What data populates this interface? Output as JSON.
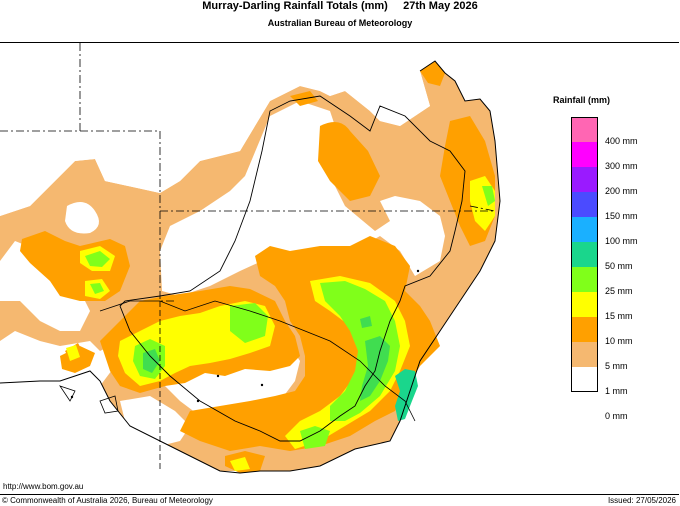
{
  "header": {
    "title": "Murray-Darling Rainfall Totals (mm)     27th May 2026",
    "subtitle": "Australian Bureau of Meteorology"
  },
  "legend": {
    "title": "Rainfall (mm)",
    "items": [
      {
        "label": "400 mm",
        "color": "#ff66b3"
      },
      {
        "label": "300 mm",
        "color": "#ff00ff"
      },
      {
        "label": "200 mm",
        "color": "#9a1aff"
      },
      {
        "label": "150 mm",
        "color": "#4b4bff"
      },
      {
        "label": "100 mm",
        "color": "#1ab0ff"
      },
      {
        "label": "50 mm",
        "color": "#1ad68c"
      },
      {
        "label": "25 mm",
        "color": "#80ff1a"
      },
      {
        "label": "15 mm",
        "color": "#ffff00"
      },
      {
        "label": "10 mm",
        "color": "#ffa000"
      },
      {
        "label": "5 mm",
        "color": "#f5b870"
      },
      {
        "label": "1 mm",
        "color": "#ffffff"
      },
      {
        "label": "0 mm",
        "color": ""
      }
    ]
  },
  "colors": {
    "rain_1mm": "#f5b870",
    "rain_5mm": "#ffa000",
    "rain_10mm": "#ffff00",
    "rain_15mm": "#80ff1a",
    "rain_25mm": "#40dd50",
    "rain_50mm": "#1ad68c",
    "background": "#ffffff"
  },
  "footer": {
    "url": "http://www.bom.gov.au",
    "copyright": "© Commonwealth of Australia 2026, Bureau of Meteorology",
    "issued": "Issued: 27/05/2026"
  }
}
